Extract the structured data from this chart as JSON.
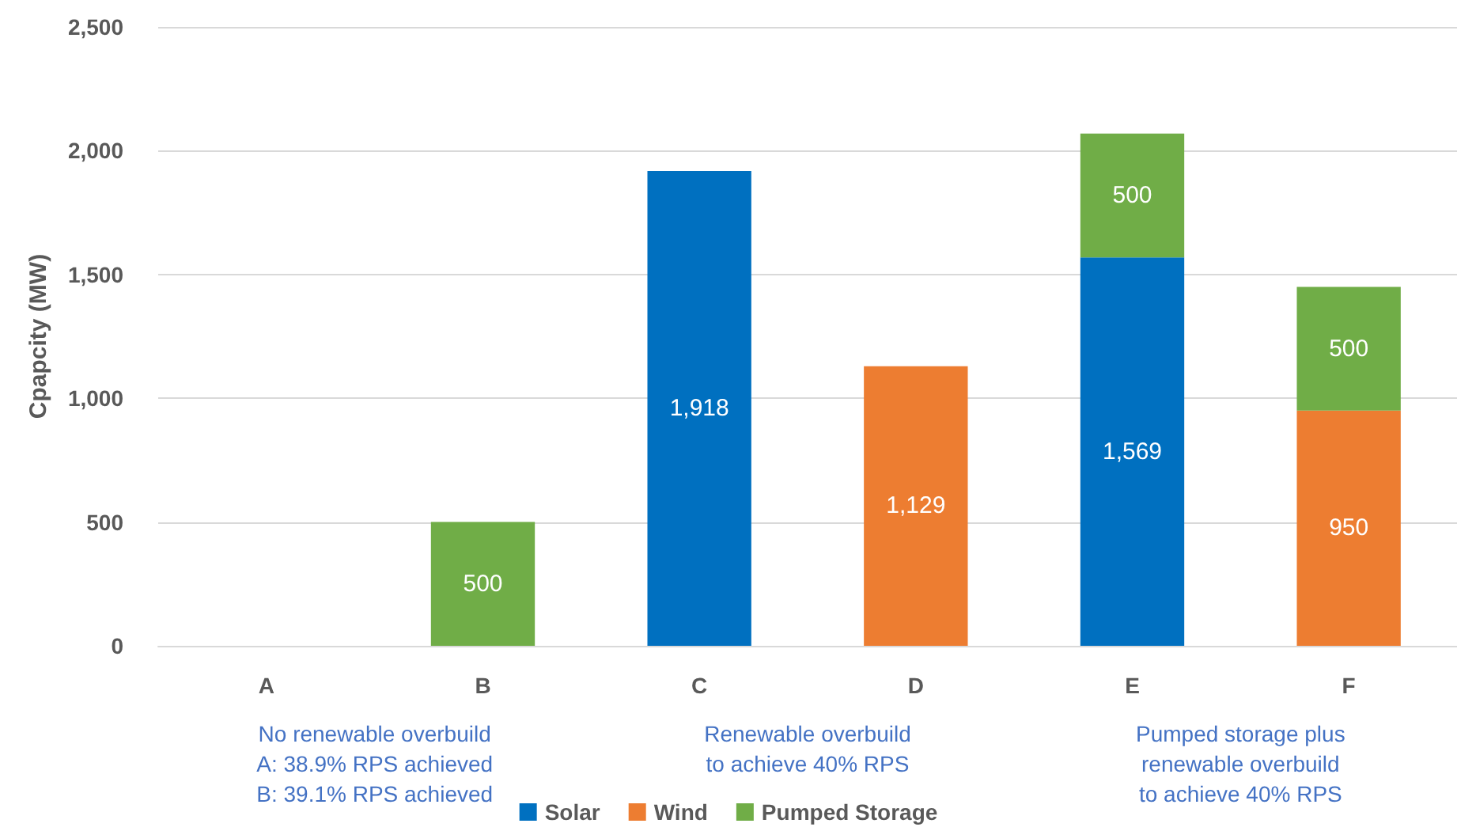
{
  "chart_data": {
    "type": "bar",
    "stacked": true,
    "ylabel": "Cpapcity (MW)",
    "categories": [
      "A",
      "B",
      "C",
      "D",
      "E",
      "F"
    ],
    "series": [
      {
        "name": "Solar",
        "color": "#0070c0",
        "values": [
          null,
          null,
          1918,
          null,
          1569,
          null
        ],
        "value_labels": [
          null,
          null,
          "1,918",
          null,
          "1,569",
          null
        ]
      },
      {
        "name": "Wind",
        "color": "#ed7d31",
        "values": [
          null,
          null,
          null,
          1129,
          null,
          950
        ],
        "value_labels": [
          null,
          null,
          null,
          "1,129",
          null,
          "950"
        ]
      },
      {
        "name": "Pumped Storage",
        "color": "#70ad47",
        "values": [
          null,
          500,
          null,
          null,
          500,
          500
        ],
        "value_labels": [
          null,
          "500",
          null,
          null,
          "500",
          "500"
        ]
      }
    ],
    "ylim": [
      0,
      2500
    ],
    "yticks": [
      {
        "value": 0,
        "label": "0"
      },
      {
        "value": 500,
        "label": "500"
      },
      {
        "value": 1000,
        "label": "1,000"
      },
      {
        "value": 1500,
        "label": "1,500"
      },
      {
        "value": 2000,
        "label": "2,000"
      },
      {
        "value": 2500,
        "label": "2,500"
      }
    ],
    "grid": "y",
    "legend": "bottom",
    "annotations": [
      "No renewable overbuild\nA: 38.9% RPS achieved\nB: 39.1% RPS achieved",
      "Renewable overbuild\nto achieve 40% RPS",
      "Pumped storage plus\nrenewable overbuild\nto achieve 40% RPS"
    ]
  }
}
